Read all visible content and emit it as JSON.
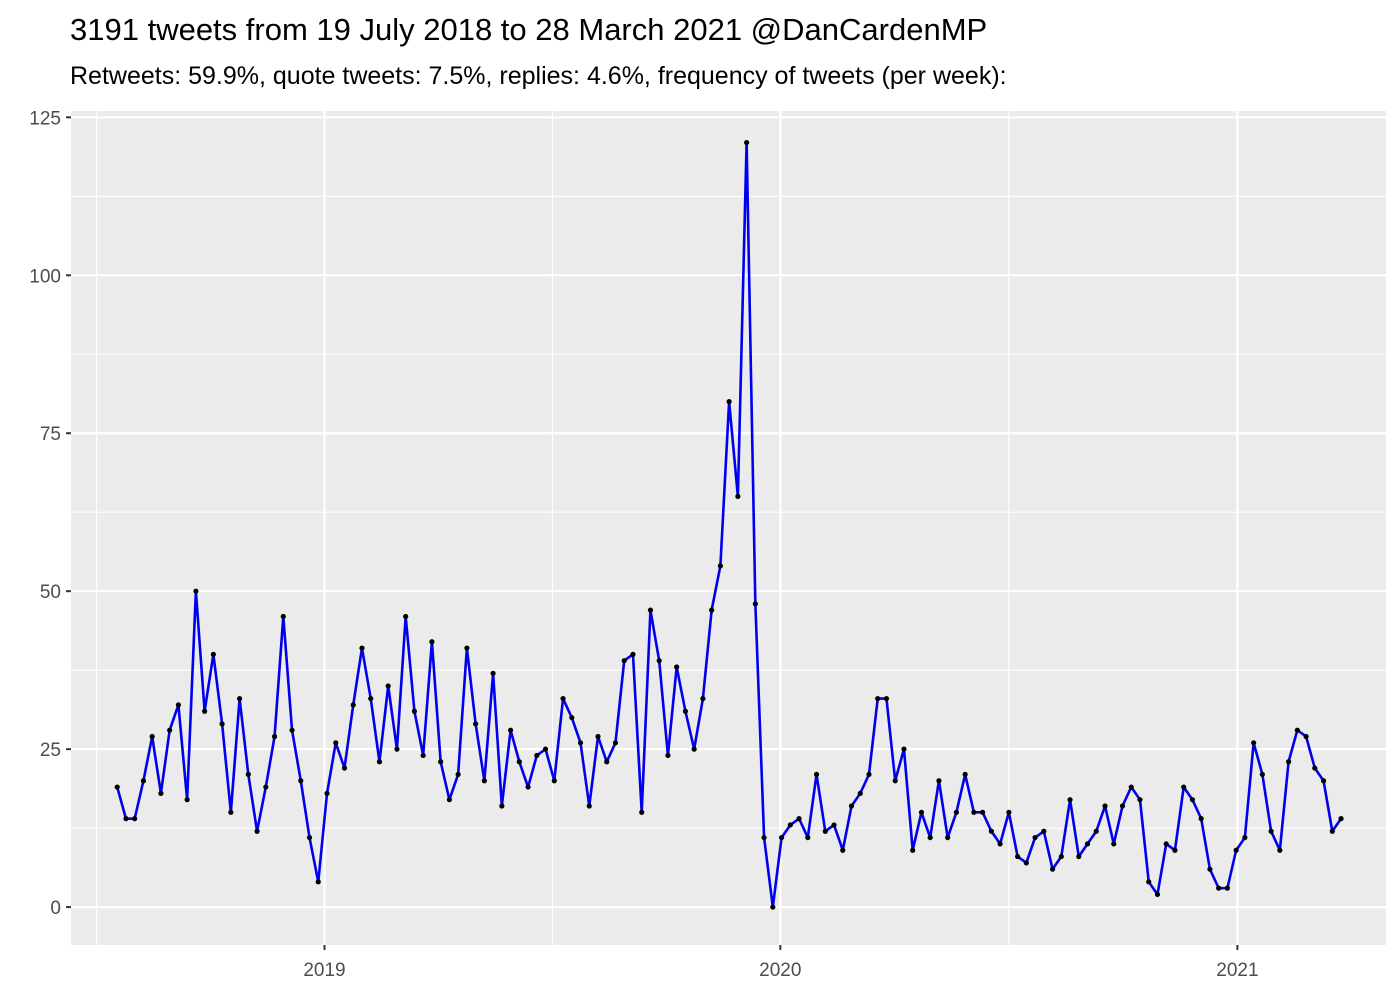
{
  "chart_data": {
    "type": "line",
    "title": "3191 tweets from 19 July 2018 to 28 March 2021 @DanCardenMP",
    "subtitle": "Retweets: 59.9%, quote tweets: 7.5%, replies: 4.6%, frequency of tweets (per week):",
    "xlabel": "",
    "ylabel": "",
    "x_ticks": [
      {
        "label": "2019",
        "date": "2019-01-01"
      },
      {
        "label": "2020",
        "date": "2020-01-01"
      },
      {
        "label": "2021",
        "date": "2021-01-01"
      }
    ],
    "y_ticks": [
      0,
      25,
      50,
      75,
      100,
      125
    ],
    "xlim": [
      "2018-06-12",
      "2021-04-30"
    ],
    "ylim": [
      -6,
      126
    ],
    "grid": true,
    "legend": "none",
    "colors": {
      "line": "#0000ee",
      "points": "#000000",
      "panel": "#ebebeb",
      "grid": "#ffffff"
    },
    "series": [
      {
        "start_date": "2018-07-19",
        "interval_days": 7,
        "values": [
          19,
          14,
          14,
          20,
          27,
          18,
          28,
          32,
          17,
          50,
          31,
          40,
          29,
          15,
          33,
          21,
          12,
          19,
          27,
          46,
          28,
          20,
          11,
          4,
          18,
          26,
          22,
          32,
          41,
          33,
          23,
          35,
          25,
          46,
          31,
          24,
          42,
          23,
          17,
          21,
          41,
          29,
          20,
          37,
          16,
          28,
          23,
          19,
          24,
          25,
          20,
          33,
          30,
          26,
          16,
          27,
          23,
          26,
          39,
          40,
          15,
          47,
          39,
          24,
          38,
          31,
          25,
          33,
          47,
          54,
          80,
          65,
          121,
          48,
          11,
          0,
          11,
          13,
          14,
          11,
          21,
          12,
          13,
          9,
          16,
          18,
          21,
          33,
          33,
          20,
          25,
          9,
          15,
          11,
          20,
          11,
          15,
          21,
          15,
          15,
          12,
          10,
          15,
          8,
          7,
          11,
          12,
          6,
          8,
          17,
          8,
          10,
          12,
          16,
          10,
          16,
          19,
          17,
          4,
          2,
          10,
          9,
          19,
          17,
          14,
          6,
          3,
          3,
          9,
          11,
          26,
          21,
          12,
          9,
          23,
          28,
          27,
          22,
          20,
          12,
          14
        ]
      }
    ]
  }
}
